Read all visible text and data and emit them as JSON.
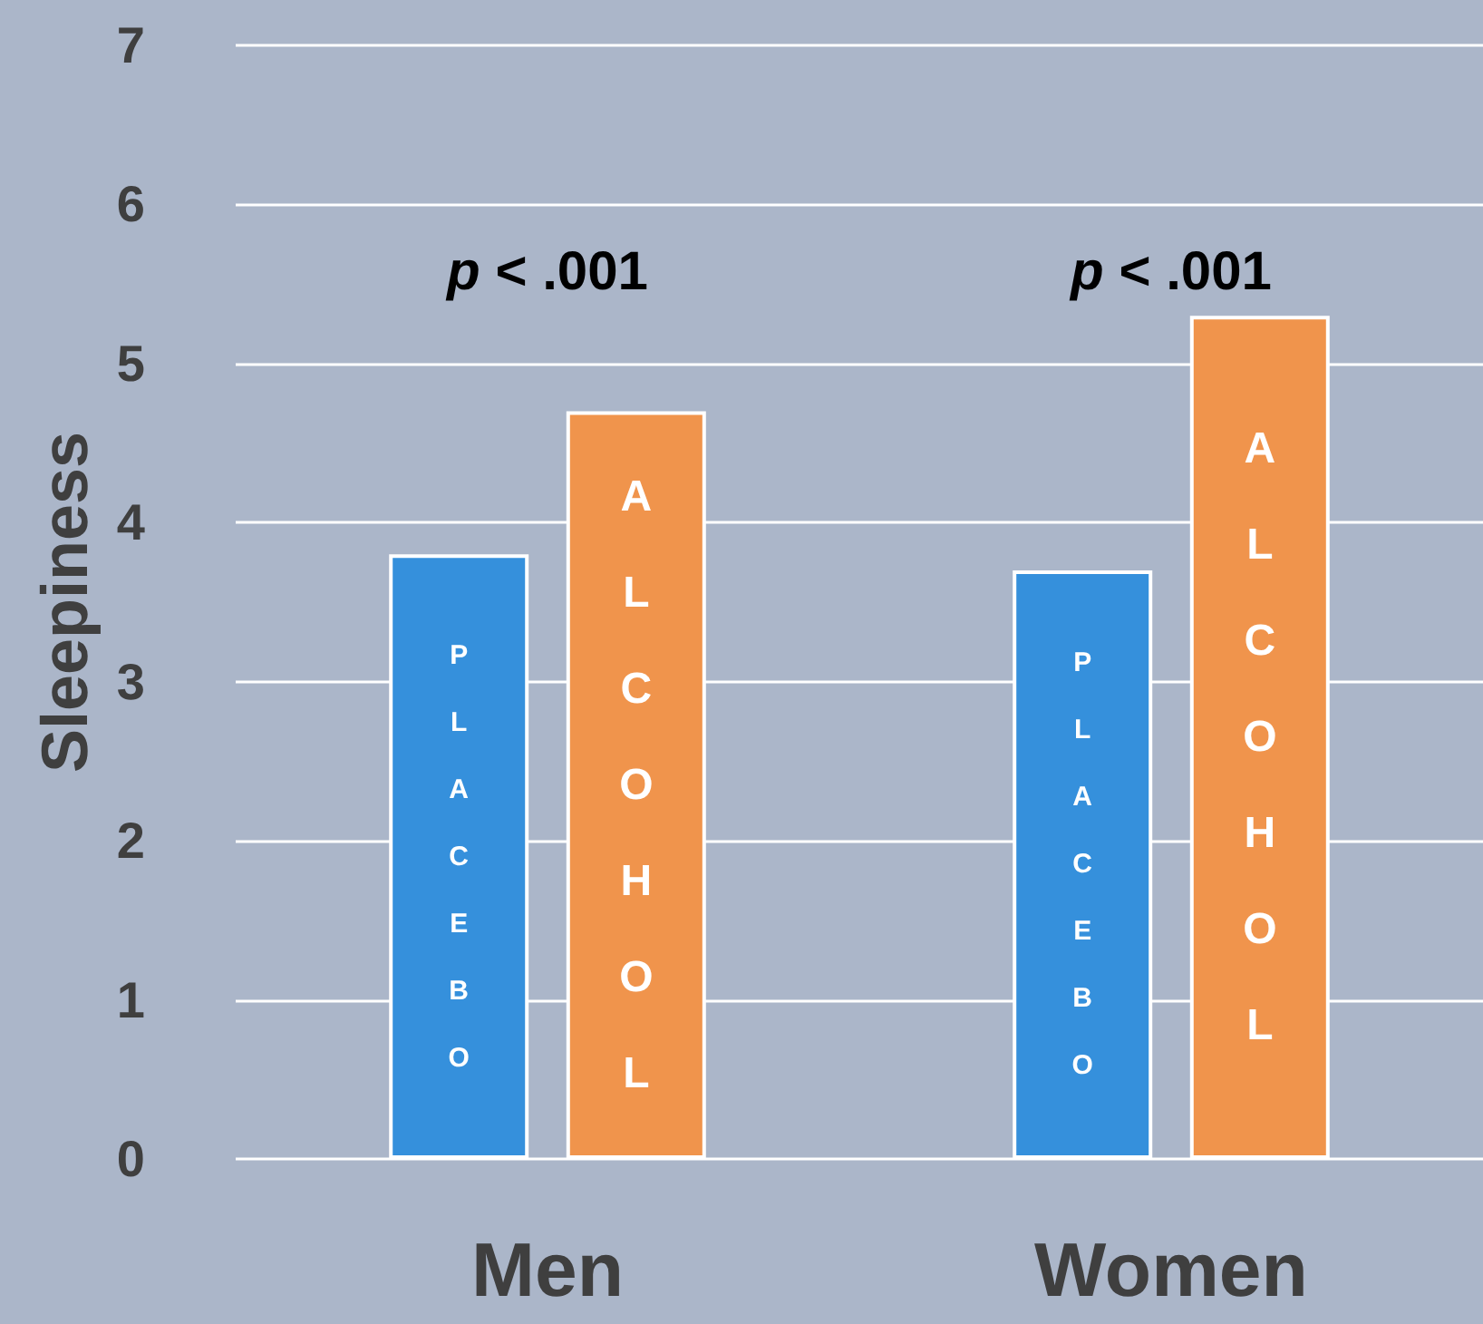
{
  "chart_data": {
    "type": "bar",
    "ylabel": "Sleepiness",
    "categories": [
      "Men",
      "Women"
    ],
    "series": [
      {
        "name": "PLACEBO",
        "color": "#3590dc",
        "values": [
          3.8,
          3.7
        ]
      },
      {
        "name": "ALCOHOL",
        "color": "#f0944c",
        "values": [
          4.7,
          5.3
        ]
      }
    ],
    "ylim": [
      0,
      7
    ],
    "yticks": [
      0,
      1,
      2,
      3,
      4,
      5,
      6,
      7
    ],
    "grid": "y",
    "legend": false,
    "annotations": [
      "p < .001",
      "p < .001"
    ]
  }
}
